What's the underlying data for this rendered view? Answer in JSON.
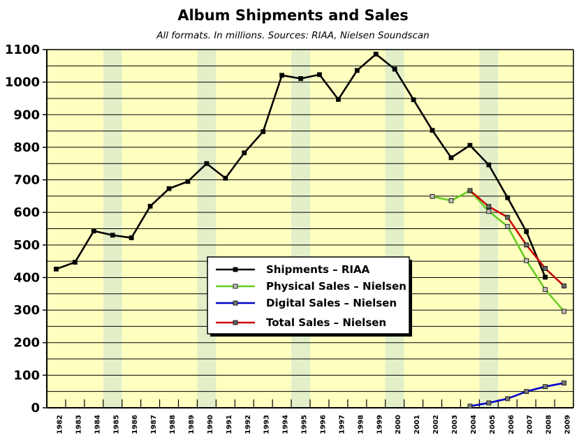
{
  "chart_data": {
    "type": "line",
    "title": "Album Shipments and Sales",
    "subtitle": "All formats. In millions. Sources: RIAA, Nielsen Soundscan",
    "xlabel": "",
    "ylabel": "",
    "ylim": [
      0,
      1100
    ],
    "yticks": [
      0,
      100,
      200,
      300,
      400,
      500,
      600,
      700,
      800,
      900,
      1000,
      1100
    ],
    "grid": true,
    "legend_position": "center-bottom",
    "highlighted_years": [
      1985,
      1990,
      1995,
      2000,
      2005
    ],
    "categories": [
      "1982",
      "1983",
      "1984",
      "1985",
      "1986",
      "1987",
      "1988",
      "1989",
      "1990",
      "1991",
      "1992",
      "1993",
      "1994",
      "1995",
      "1996",
      "1997",
      "1998",
      "1999",
      "2000",
      "2001",
      "2002",
      "2003",
      "2004",
      "2005",
      "2006",
      "2007",
      "2008",
      "2009"
    ],
    "series": [
      {
        "name": "Shipments – RIAA",
        "color": "#000000",
        "marker": "#000000",
        "values": [
          426,
          447,
          543,
          530,
          522,
          619,
          673,
          695,
          750,
          705,
          783,
          848,
          1021,
          1011,
          1023,
          947,
          1036,
          1086,
          1040,
          946,
          852,
          768,
          806,
          746,
          645,
          541,
          401,
          null
        ]
      },
      {
        "name": "Physical Sales – Nielsen",
        "color": "#66cc22",
        "marker": "#bbbbbb",
        "values": [
          null,
          null,
          null,
          null,
          null,
          null,
          null,
          null,
          null,
          null,
          null,
          null,
          null,
          null,
          null,
          null,
          null,
          null,
          null,
          null,
          649,
          636,
          667,
          603,
          557,
          452,
          363,
          296
        ]
      },
      {
        "name": "Digital Sales – Nielsen",
        "color": "#0000cc",
        "marker": "#777777",
        "values": [
          null,
          null,
          null,
          null,
          null,
          null,
          null,
          null,
          null,
          null,
          null,
          null,
          null,
          null,
          null,
          null,
          null,
          null,
          null,
          null,
          null,
          null,
          5,
          15,
          28,
          50,
          65,
          76
        ]
      },
      {
        "name": "Total Sales – Nielsen",
        "color": "#cc0000",
        "marker": "#666666",
        "values": [
          null,
          null,
          null,
          null,
          null,
          null,
          null,
          null,
          null,
          null,
          null,
          null,
          null,
          null,
          null,
          null,
          null,
          null,
          null,
          null,
          null,
          null,
          667,
          618,
          585,
          500,
          428,
          374
        ]
      }
    ]
  }
}
